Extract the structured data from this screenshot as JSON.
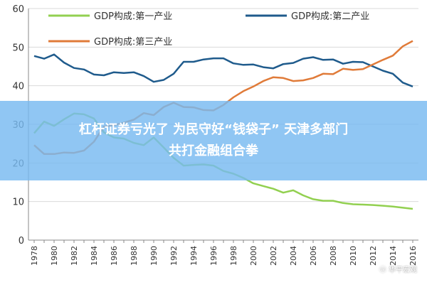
{
  "chart_data": {
    "type": "line",
    "x": [
      1978,
      1979,
      1980,
      1981,
      1982,
      1983,
      1984,
      1985,
      1986,
      1987,
      1988,
      1989,
      1990,
      1991,
      1992,
      1993,
      1994,
      1995,
      1996,
      1997,
      1998,
      1999,
      2000,
      2001,
      2002,
      2003,
      2004,
      2005,
      2006,
      2007,
      2008,
      2009,
      2010,
      2011,
      2012,
      2013,
      2014,
      2015,
      2016
    ],
    "x_ticks": [
      "1978",
      "1980",
      "1982",
      "1984",
      "1986",
      "1988",
      "1990",
      "1992",
      "1994",
      "1996",
      "1998",
      "2000",
      "2002",
      "2004",
      "2006",
      "2008",
      "2010",
      "2012",
      "2014",
      "2016"
    ],
    "y_ticks": [
      "0",
      "10",
      "20",
      "30",
      "40",
      "50",
      "60"
    ],
    "ylim": [
      0,
      60
    ],
    "legend_placement": "top",
    "series": [
      {
        "name": "GDP构成:第一产业",
        "color": "#92D050",
        "values": [
          27.7,
          30.7,
          29.6,
          31.3,
          32.8,
          32.6,
          31.5,
          27.9,
          26.6,
          26.3,
          25.2,
          24.6,
          26.6,
          24.0,
          21.3,
          19.3,
          19.5,
          19.6,
          19.3,
          17.9,
          17.2,
          16.1,
          14.7,
          14.0,
          13.3,
          12.3,
          12.9,
          11.6,
          10.6,
          10.2,
          10.2,
          9.6,
          9.3,
          9.2,
          9.1,
          8.9,
          8.7,
          8.4,
          8.1
        ]
      },
      {
        "name": "GDP构成:第二产业",
        "color": "#1F5B8C",
        "values": [
          47.7,
          47.0,
          48.1,
          46.0,
          44.6,
          44.2,
          42.9,
          42.7,
          43.5,
          43.3,
          43.5,
          42.5,
          41.0,
          41.5,
          43.1,
          46.2,
          46.2,
          46.8,
          47.1,
          47.1,
          45.8,
          45.4,
          45.5,
          44.8,
          44.5,
          45.6,
          45.9,
          47.0,
          47.4,
          46.7,
          46.8,
          45.7,
          46.2,
          46.1,
          45.0,
          43.9,
          43.1,
          40.8,
          39.8
        ]
      },
      {
        "name": "GDP构成:第三产业",
        "color": "#E07B39",
        "values": [
          24.6,
          22.3,
          22.3,
          22.7,
          22.6,
          23.2,
          25.5,
          29.4,
          29.8,
          30.4,
          31.2,
          32.9,
          32.4,
          34.5,
          35.6,
          34.5,
          34.4,
          33.7,
          33.6,
          35.0,
          37.0,
          38.6,
          39.8,
          41.2,
          42.2,
          42.0,
          41.2,
          41.4,
          42.0,
          43.1,
          43.0,
          44.4,
          44.1,
          44.3,
          45.5,
          46.7,
          47.8,
          50.2,
          51.6
        ]
      }
    ]
  },
  "banner": {
    "line1": "杠杆证券亏光了 为民守好“钱袋子” 天津多部门",
    "line2": "共打金融组合拳"
  },
  "watermark": "ⓦ 华平宏观"
}
